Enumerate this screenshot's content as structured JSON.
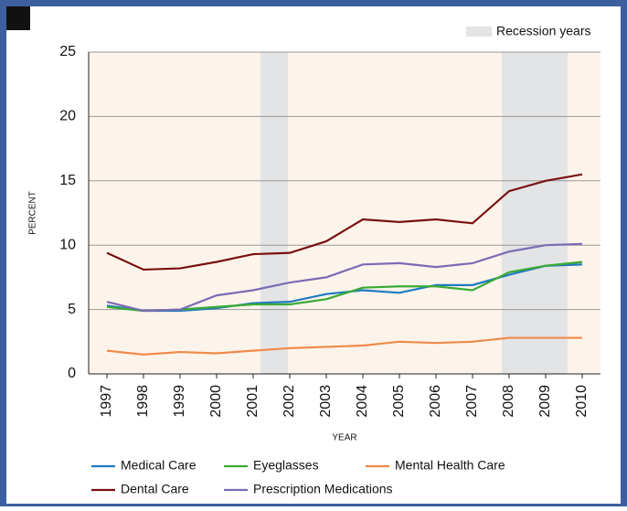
{
  "chart_data": {
    "type": "line",
    "x": [
      1997,
      1998,
      1999,
      2000,
      2001,
      2002,
      2003,
      2004,
      2005,
      2006,
      2007,
      2008,
      2009,
      2010
    ],
    "xlim": [
      1996.5,
      2010.5
    ],
    "xticks": [
      1997,
      1998,
      1999,
      2000,
      2001,
      2002,
      2003,
      2004,
      2005,
      2006,
      2007,
      2008,
      2009,
      2010
    ],
    "ylim": [
      0,
      25
    ],
    "yticks": [
      0,
      5,
      10,
      15,
      20,
      25
    ],
    "xlabel": "YEAR",
    "ylabel": "PERCENT",
    "grid": true,
    "shaded_label": "Recession years",
    "shaded_color": "#e3e4e6",
    "shaded_ranges": [
      [
        2001.2,
        2001.95
      ],
      [
        2007.8,
        2009.6
      ]
    ],
    "series": [
      {
        "name": "Medical Care",
        "color": "#1f7ac0",
        "values": [
          5.3,
          4.9,
          4.9,
          5.1,
          5.5,
          5.6,
          6.2,
          6.5,
          6.3,
          6.9,
          6.9,
          7.7,
          8.4,
          8.5
        ]
      },
      {
        "name": "Eyeglasses",
        "color": "#3aaa35",
        "values": [
          5.2,
          4.9,
          5.0,
          5.2,
          5.4,
          5.4,
          5.8,
          6.7,
          6.8,
          6.8,
          6.5,
          7.9,
          8.4,
          8.7
        ]
      },
      {
        "name": "Mental Health Care",
        "color": "#f08a4b",
        "values": [
          1.8,
          1.5,
          1.7,
          1.6,
          1.8,
          2.0,
          2.1,
          2.2,
          2.5,
          2.4,
          2.5,
          2.8,
          2.8,
          2.8
        ]
      },
      {
        "name": "Dental Care",
        "color": "#7a1010",
        "values": [
          9.4,
          8.1,
          8.2,
          8.7,
          9.3,
          9.4,
          10.3,
          12.0,
          11.8,
          12.0,
          11.7,
          14.2,
          15.0,
          15.5
        ]
      },
      {
        "name": "Prescription Medications",
        "color": "#7b6bb5",
        "values": [
          5.6,
          4.9,
          5.0,
          6.1,
          6.5,
          7.1,
          7.5,
          8.5,
          8.6,
          8.3,
          8.6,
          9.5,
          10.0,
          10.1
        ]
      }
    ]
  }
}
